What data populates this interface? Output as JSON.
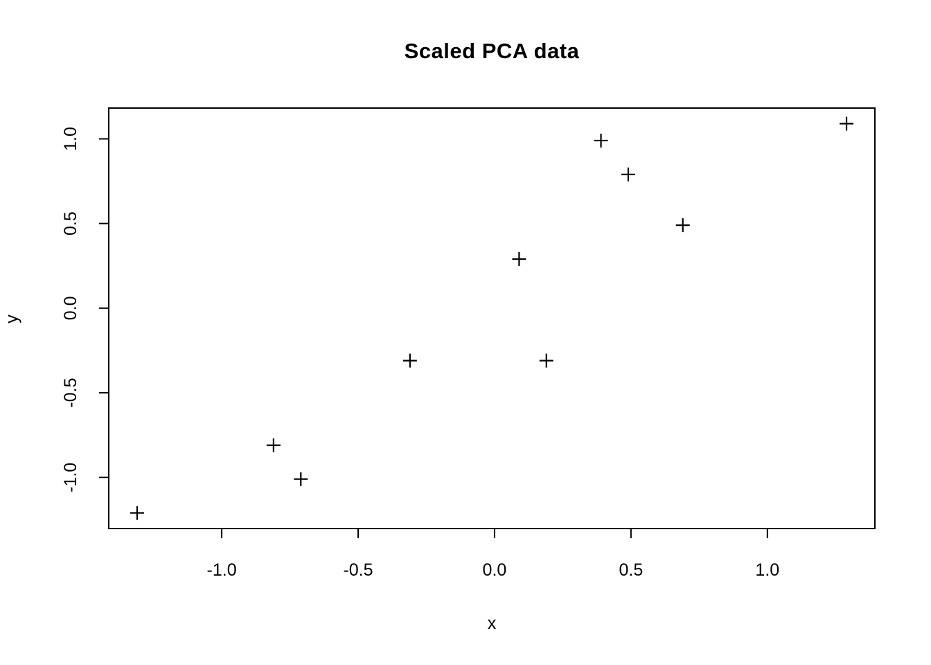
{
  "chart_data": {
    "type": "scatter",
    "title": "Scaled PCA data",
    "xlabel": "x",
    "ylabel": "y",
    "marker": "plus",
    "marker_color": "#000000",
    "background_color": "#ffffff",
    "grid": false,
    "legend": null,
    "xlim": [
      -1.414,
      1.394
    ],
    "ylim": [
      -1.302,
      1.182
    ],
    "x_ticks": [
      -1.0,
      -0.5,
      0.0,
      0.5,
      1.0
    ],
    "x_tick_labels": [
      "-1.0",
      "-0.5",
      "0.0",
      "0.5",
      "1.0"
    ],
    "y_ticks": [
      -1.0,
      -0.5,
      0.0,
      0.5,
      1.0
    ],
    "y_tick_labels": [
      "-1.0",
      "-0.5",
      "0.0",
      "0.5",
      "1.0"
    ],
    "points": [
      {
        "x": 0.69,
        "y": 0.49
      },
      {
        "x": -1.31,
        "y": -1.21
      },
      {
        "x": 0.39,
        "y": 0.99
      },
      {
        "x": 0.09,
        "y": 0.29
      },
      {
        "x": 1.29,
        "y": 1.09
      },
      {
        "x": 0.49,
        "y": 0.79
      },
      {
        "x": 0.19,
        "y": -0.31
      },
      {
        "x": -0.81,
        "y": -0.81
      },
      {
        "x": -0.31,
        "y": -0.31
      },
      {
        "x": -0.71,
        "y": -1.01
      }
    ]
  }
}
